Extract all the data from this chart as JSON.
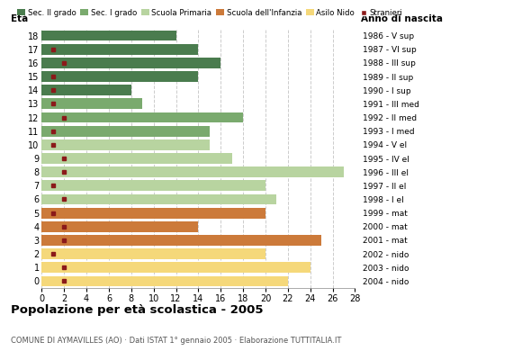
{
  "ages": [
    18,
    17,
    16,
    15,
    14,
    13,
    12,
    11,
    10,
    9,
    8,
    7,
    6,
    5,
    4,
    3,
    2,
    1,
    0
  ],
  "year_labels": [
    "1986 - V sup",
    "1987 - VI sup",
    "1988 - III sup",
    "1989 - II sup",
    "1990 - I sup",
    "1991 - III med",
    "1992 - II med",
    "1993 - I med",
    "1994 - V el",
    "1995 - IV el",
    "1996 - III el",
    "1997 - II el",
    "1998 - I el",
    "1999 - mat",
    "2000 - mat",
    "2001 - mat",
    "2002 - nido",
    "2003 - nido",
    "2004 - nido"
  ],
  "bar_values": [
    12,
    14,
    16,
    14,
    8,
    9,
    18,
    15,
    15,
    17,
    27,
    20,
    21,
    20,
    14,
    25,
    20,
    24,
    22
  ],
  "bar_colors": [
    "#4a7c4e",
    "#4a7c4e",
    "#4a7c4e",
    "#4a7c4e",
    "#4a7c4e",
    "#7aaa6e",
    "#7aaa6e",
    "#7aaa6e",
    "#b8d4a0",
    "#b8d4a0",
    "#b8d4a0",
    "#b8d4a0",
    "#b8d4a0",
    "#cc7a3a",
    "#cc7a3a",
    "#cc7a3a",
    "#f5d87a",
    "#f5d87a",
    "#f5d87a"
  ],
  "stranieri_values": [
    0,
    1,
    2,
    1,
    1,
    1,
    2,
    1,
    1,
    2,
    2,
    1,
    2,
    1,
    2,
    2,
    1,
    2,
    2
  ],
  "stranieri_color": "#8b1a1a",
  "legend_labels": [
    "Sec. II grado",
    "Sec. I grado",
    "Scuola Primaria",
    "Scuola dell'Infanzia",
    "Asilo Nido",
    "Stranieri"
  ],
  "legend_colors": [
    "#4a7c4e",
    "#7aaa6e",
    "#b8d4a0",
    "#cc7a3a",
    "#f5d87a",
    "#8b1a1a"
  ],
  "title": "Popolazione per età scolastica - 2005",
  "subtitle": "COMUNE DI AYMAVILLES (AO) · Dati ISTAT 1° gennaio 2005 · Elaborazione TUTTITALIA.IT",
  "xlabel_eta": "Età",
  "xlabel_anno": "Anno di nascita",
  "xlim": [
    0,
    28
  ],
  "xticks": [
    0,
    2,
    4,
    6,
    8,
    10,
    12,
    14,
    16,
    18,
    20,
    22,
    24,
    26,
    28
  ],
  "background_color": "#ffffff",
  "grid_color": "#cccccc",
  "bar_height": 0.78
}
